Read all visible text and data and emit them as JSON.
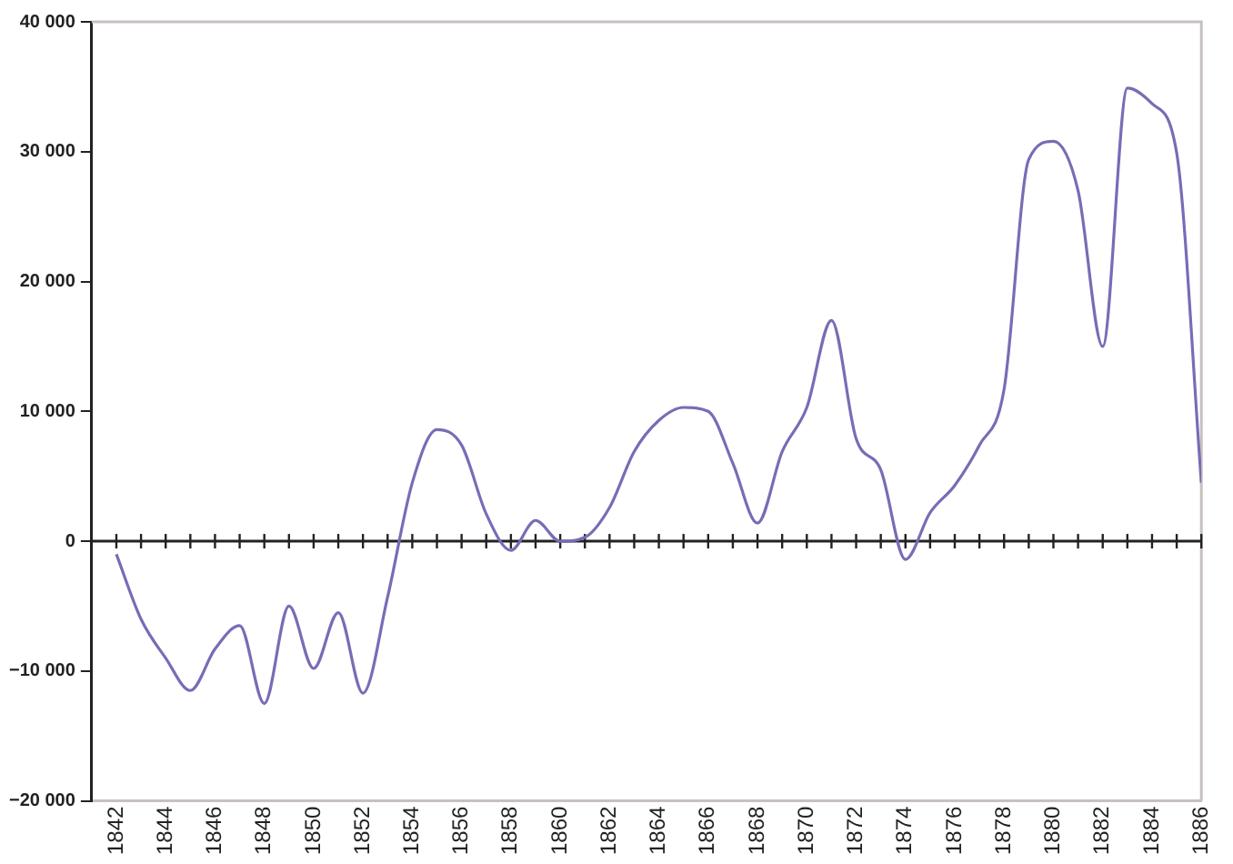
{
  "chart_data": {
    "type": "line",
    "x": [
      1842,
      1843,
      1844,
      1845,
      1846,
      1847,
      1848,
      1849,
      1850,
      1851,
      1852,
      1853,
      1854,
      1855,
      1856,
      1857,
      1858,
      1859,
      1860,
      1861,
      1862,
      1863,
      1864,
      1865,
      1866,
      1867,
      1868,
      1869,
      1870,
      1871,
      1872,
      1873,
      1874,
      1875,
      1876,
      1877,
      1878,
      1879,
      1880,
      1881,
      1882,
      1883,
      1884,
      1885,
      1886
    ],
    "series": [
      {
        "color": "#7b6bb5",
        "values": [
          -1000,
          -6000,
          -9000,
          -11500,
          -8300,
          -6500,
          -12500,
          -5000,
          -9800,
          -5500,
          -11700,
          -4300,
          4500,
          8600,
          7400,
          2100,
          -700,
          1600,
          0,
          300,
          2600,
          6900,
          9300,
          10300,
          10000,
          6000,
          1400,
          6900,
          10300,
          17000,
          7900,
          5500,
          -1400,
          2200,
          4300,
          7400,
          11700,
          29400,
          30800,
          27000,
          15000,
          34900,
          33700,
          29900,
          4500
        ]
      }
    ],
    "xlim": [
      1841,
      1886
    ],
    "xticks": [
      {
        "value": 1842,
        "label": "1842"
      },
      {
        "value": 1843,
        "label": null
      },
      {
        "value": 1844,
        "label": "1844"
      },
      {
        "value": 1845,
        "label": null
      },
      {
        "value": 1846,
        "label": "1846"
      },
      {
        "value": 1847,
        "label": null
      },
      {
        "value": 1848,
        "label": "1848"
      },
      {
        "value": 1849,
        "label": null
      },
      {
        "value": 1850,
        "label": "1850"
      },
      {
        "value": 1851,
        "label": null
      },
      {
        "value": 1852,
        "label": "1852"
      },
      {
        "value": 1853,
        "label": null
      },
      {
        "value": 1854,
        "label": "1854"
      },
      {
        "value": 1855,
        "label": null
      },
      {
        "value": 1856,
        "label": "1856"
      },
      {
        "value": 1857,
        "label": null
      },
      {
        "value": 1858,
        "label": "1858"
      },
      {
        "value": 1859,
        "label": null
      },
      {
        "value": 1860,
        "label": "1860"
      },
      {
        "value": 1861,
        "label": null
      },
      {
        "value": 1862,
        "label": "1862"
      },
      {
        "value": 1863,
        "label": null
      },
      {
        "value": 1864,
        "label": "1864"
      },
      {
        "value": 1865,
        "label": null
      },
      {
        "value": 1866,
        "label": "1866"
      },
      {
        "value": 1867,
        "label": null
      },
      {
        "value": 1868,
        "label": "1868"
      },
      {
        "value": 1869,
        "label": null
      },
      {
        "value": 1870,
        "label": "1870"
      },
      {
        "value": 1871,
        "label": null
      },
      {
        "value": 1872,
        "label": "1872"
      },
      {
        "value": 1873,
        "label": null
      },
      {
        "value": 1874,
        "label": "1874"
      },
      {
        "value": 1875,
        "label": null
      },
      {
        "value": 1876,
        "label": "1876"
      },
      {
        "value": 1877,
        "label": null
      },
      {
        "value": 1878,
        "label": "1878"
      },
      {
        "value": 1879,
        "label": null
      },
      {
        "value": 1880,
        "label": "1880"
      },
      {
        "value": 1881,
        "label": null
      },
      {
        "value": 1882,
        "label": "1882"
      },
      {
        "value": 1883,
        "label": null
      },
      {
        "value": 1884,
        "label": "1884"
      },
      {
        "value": 1885,
        "label": null
      },
      {
        "value": 1886,
        "label": "1886"
      }
    ],
    "ylim": [
      -20000,
      40000
    ],
    "yticks": [
      {
        "value": -20000,
        "label": "−20 000"
      },
      {
        "value": -10000,
        "label": "−10 000"
      },
      {
        "value": 0,
        "label": "0"
      },
      {
        "value": 10000,
        "label": "10 000"
      },
      {
        "value": 20000,
        "label": "20 000"
      },
      {
        "value": 30000,
        "label": "30 000"
      },
      {
        "value": 40000,
        "label": "40 000"
      }
    ],
    "ref_lines": [
      {
        "axis": "y",
        "value": 0,
        "color": "#222222"
      }
    ],
    "grid": false,
    "legend": false,
    "marker": "none",
    "line_style": "solid"
  }
}
